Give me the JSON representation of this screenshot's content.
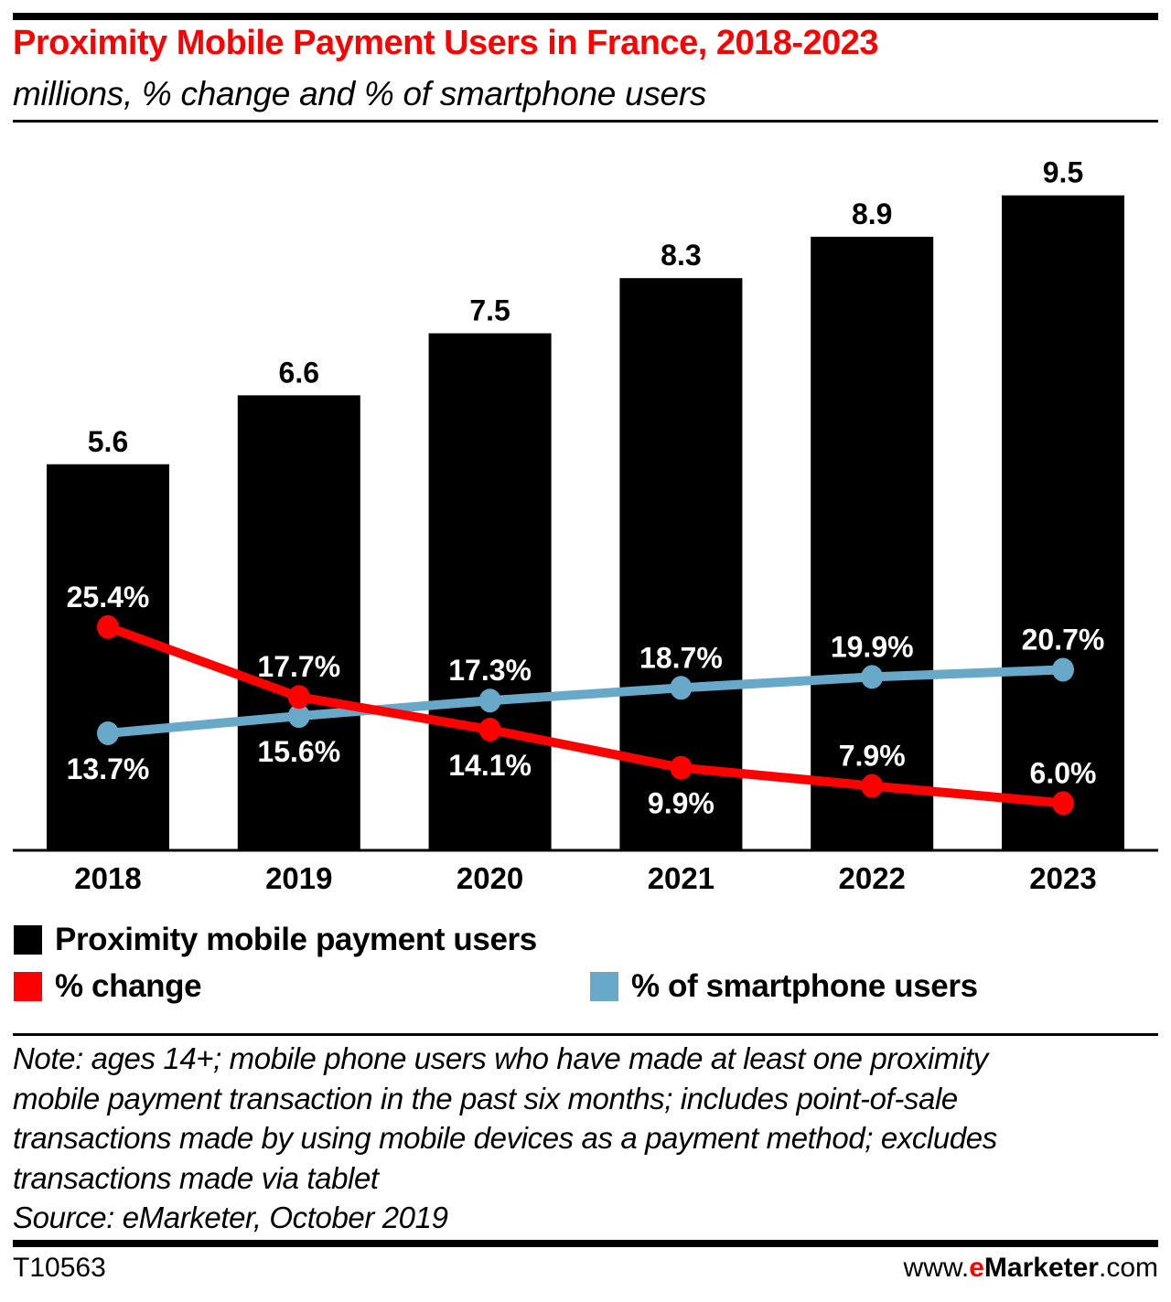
{
  "header": {
    "title": "Proximity Mobile Payment Users in France, 2018-2023",
    "subtitle": "millions, % change and % of smartphone users"
  },
  "colors": {
    "bars": "#000000",
    "change": "#ff0000",
    "smartphone": "#68a9c9",
    "title": "#ff0000",
    "label_on_bar": "#ffffff"
  },
  "chart_data": {
    "type": "bar",
    "title": "Proximity Mobile Payment Users in France, 2018-2023",
    "subtitle": "millions, % change and % of smartphone users",
    "categories": [
      "2018",
      "2019",
      "2020",
      "2021",
      "2022",
      "2023"
    ],
    "xlabel": "",
    "ylabel": "",
    "grid": false,
    "legend_position": "bottom-left",
    "ylim": [
      0,
      9.5
    ],
    "secondary_ylim": [
      0,
      25.4
    ],
    "series": [
      {
        "name": "Proximity mobile payment users",
        "type": "bar",
        "axis": "primary",
        "unit": "millions",
        "values": [
          5.6,
          6.6,
          7.5,
          8.3,
          8.9,
          9.5
        ],
        "labels": [
          "5.6",
          "6.6",
          "7.5",
          "8.3",
          "8.9",
          "9.5"
        ]
      },
      {
        "name": "% change",
        "type": "line",
        "axis": "secondary",
        "unit": "%",
        "values": [
          25.4,
          17.7,
          14.1,
          9.9,
          7.9,
          6.0
        ],
        "labels": [
          "25.4%",
          "17.7%",
          "14.1%",
          "9.9%",
          "7.9%",
          "6.0%"
        ],
        "label_side": [
          "above",
          "above",
          "below",
          "below",
          "above",
          "above"
        ]
      },
      {
        "name": "% of smartphone users",
        "type": "line",
        "axis": "secondary",
        "unit": "%",
        "values": [
          13.7,
          15.6,
          17.3,
          18.7,
          19.9,
          20.7
        ],
        "labels": [
          "13.7%",
          "15.6%",
          "17.3%",
          "18.7%",
          "19.9%",
          "20.7%"
        ],
        "label_side": [
          "below",
          "below",
          "above",
          "above",
          "above",
          "above"
        ]
      }
    ]
  },
  "legend": {
    "items": [
      {
        "label": "Proximity mobile payment users",
        "color": "#000000"
      },
      {
        "label": "% change",
        "color": "#ff0000"
      },
      {
        "label": "% of smartphone users",
        "color": "#68a9c9"
      }
    ]
  },
  "footer": {
    "note_lines": [
      "Note: ages 14+; mobile phone users who have made at least one proximity",
      "mobile payment transaction in the past six months; includes point-of-sale",
      "transactions made by using mobile devices as a payment method; excludes",
      "transactions made via tablet"
    ],
    "source": "Source: eMarketer, October 2019",
    "chart_id": "T10563",
    "site_prefix": "www.",
    "site_brand_e": "e",
    "site_brand_rest": "Marketer",
    "site_suffix": ".com"
  }
}
